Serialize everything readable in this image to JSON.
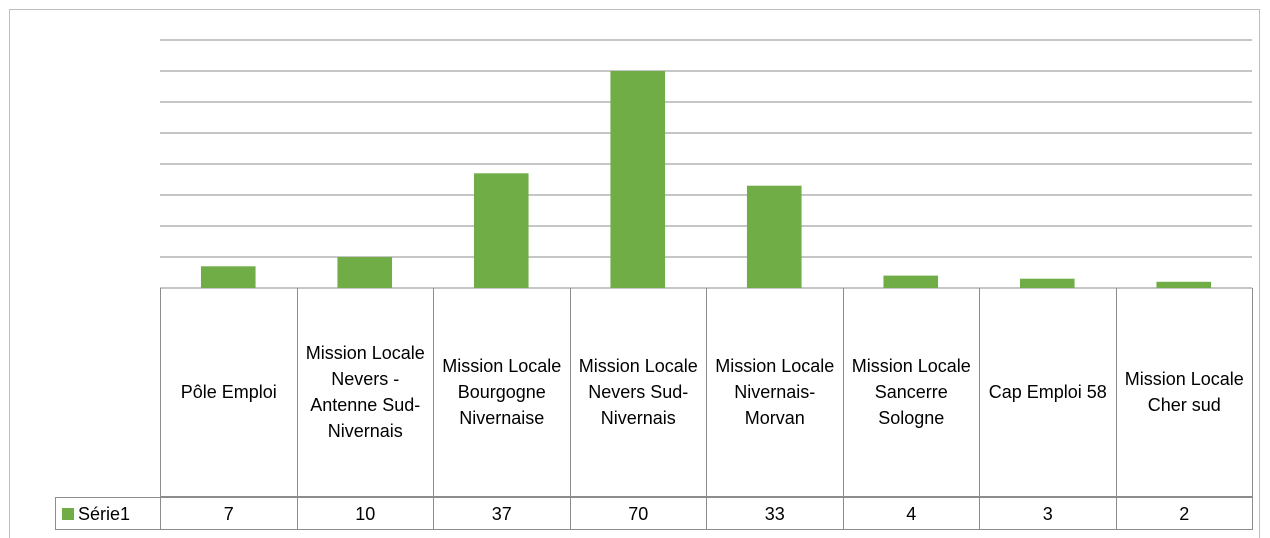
{
  "chart_data": {
    "type": "bar",
    "categories": [
      "Pôle Emploi",
      "Mission Locale Nevers - Antenne Sud-Nivernais",
      "Mission Locale Bourgogne Nivernaise",
      "Mission Locale Nevers Sud-Nivernais",
      "Mission Locale Nivernais-Morvan",
      "Mission Locale Sancerre Sologne",
      "Cap Emploi 58",
      "Mission Locale Cher sud"
    ],
    "series": [
      {
        "name": "Série1",
        "color": "#70ad47",
        "values": [
          7,
          10,
          37,
          70,
          33,
          4,
          3,
          2
        ]
      }
    ],
    "ylim": [
      0,
      80
    ],
    "yticks": [
      0,
      10,
      20,
      30,
      40,
      50,
      60,
      70,
      80
    ],
    "grid": true
  }
}
